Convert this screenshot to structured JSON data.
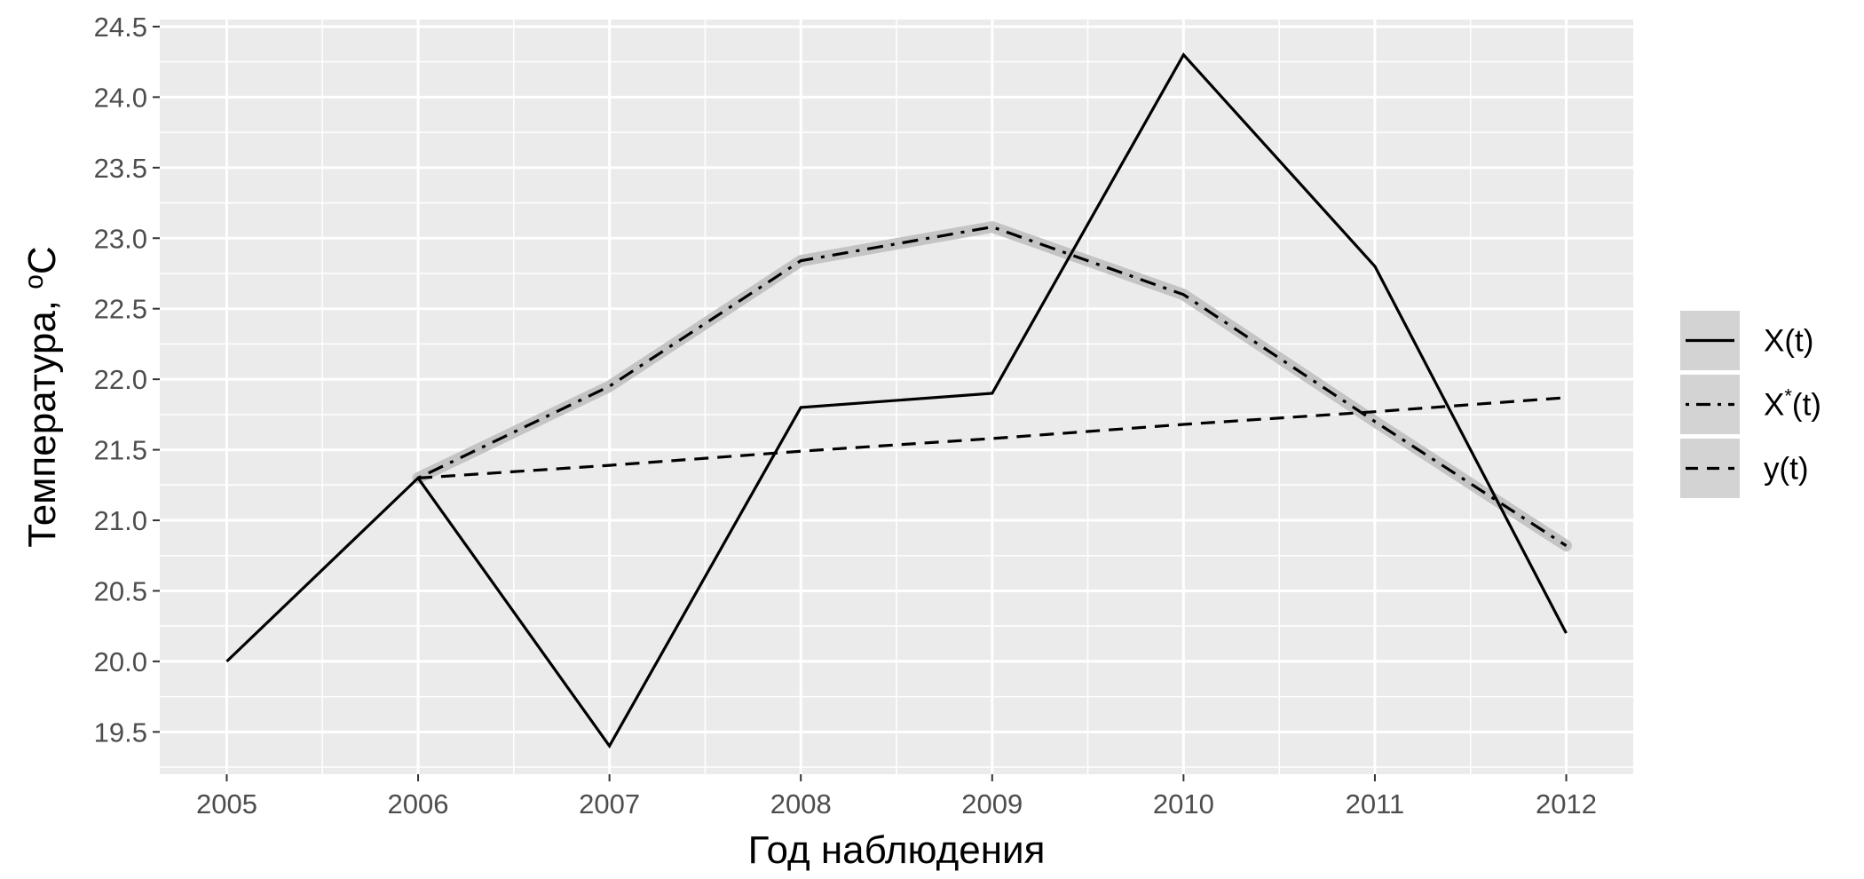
{
  "chart_data": {
    "type": "line",
    "xlabel": "Год наблюдения",
    "ylabel": "Температура, ",
    "ylabel_unit_sup": "o",
    "ylabel_unit_rest": "C",
    "x": [
      2005,
      2006,
      2007,
      2008,
      2009,
      2010,
      2011,
      2012
    ],
    "x_tick_labels": [
      "2005",
      "2006",
      "2007",
      "2008",
      "2009",
      "2010",
      "2011",
      "2012"
    ],
    "xlim": [
      2004.65,
      2012.35
    ],
    "ylim": [
      19.2,
      24.55
    ],
    "y_ticks": [
      19.5,
      20.0,
      20.5,
      21.0,
      21.5,
      22.0,
      22.5,
      23.0,
      23.5,
      24.0,
      24.5
    ],
    "y_tick_labels": [
      "19.5",
      "20.0",
      "20.5",
      "21.0",
      "21.5",
      "22.0",
      "22.5",
      "23.0",
      "23.5",
      "24.0",
      "24.5"
    ],
    "grid": true,
    "legend_position": "right",
    "series": [
      {
        "name": "X(t)",
        "name_base": "X",
        "name_sup": "",
        "name_tail": "(t)",
        "linetype": "solid",
        "x": [
          2005,
          2006,
          2007,
          2008,
          2009,
          2010,
          2011,
          2012
        ],
        "values": [
          20.0,
          21.3,
          19.4,
          21.8,
          21.9,
          24.3,
          22.8,
          20.2
        ]
      },
      {
        "name": "X*(t)",
        "name_base": "X",
        "name_sup": "*",
        "name_tail": "(t)",
        "linetype": "dotdash",
        "band": true,
        "x": [
          2006,
          2007,
          2008,
          2009,
          2010,
          2011,
          2012
        ],
        "values": [
          21.3,
          21.95,
          22.84,
          23.08,
          22.6,
          21.7,
          20.82
        ]
      },
      {
        "name": "y(t)",
        "name_base": "y",
        "name_sup": "",
        "name_tail": "(t)",
        "linetype": "dashed",
        "x": [
          2006,
          2007,
          2008,
          2009,
          2010,
          2011,
          2012
        ],
        "values": [
          21.3,
          21.39,
          21.49,
          21.58,
          21.68,
          21.77,
          21.87
        ]
      }
    ],
    "colors": {
      "panel_background": "#ebebeb",
      "grid": "#ffffff",
      "line": "#000000",
      "band": "#c4c4c4",
      "legend_key_background": "#d3d3d3"
    }
  }
}
